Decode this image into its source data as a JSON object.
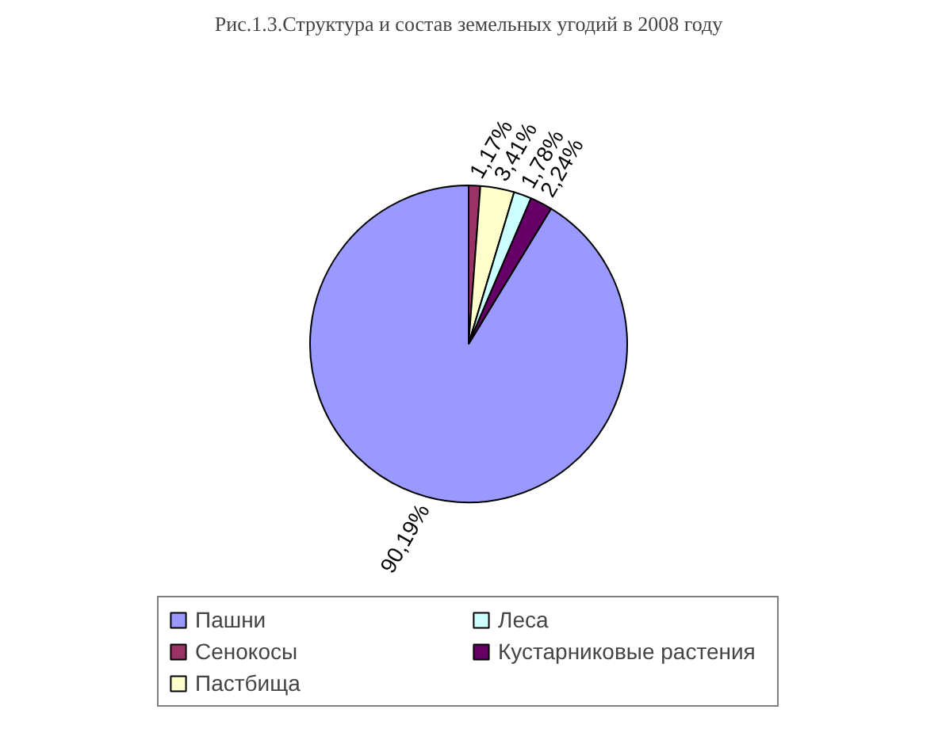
{
  "chart_data": {
    "type": "pie",
    "title": "Рис.1.3.Структура и состав земельных угодий в 2008 году",
    "categories": [
      "Пашни",
      "Сенокосы",
      "Пастбища",
      "Леса",
      "Кустарниковые растения"
    ],
    "values": [
      90.19,
      1.17,
      3.41,
      1.78,
      2.24
    ],
    "colors": [
      "#9999ff",
      "#993366",
      "#ffffcc",
      "#ccffff",
      "#660066"
    ],
    "value_labels": [
      "90,19%",
      "1,17%",
      "3,41%",
      "1,78%",
      "2,24%"
    ],
    "legend": "bottom"
  }
}
